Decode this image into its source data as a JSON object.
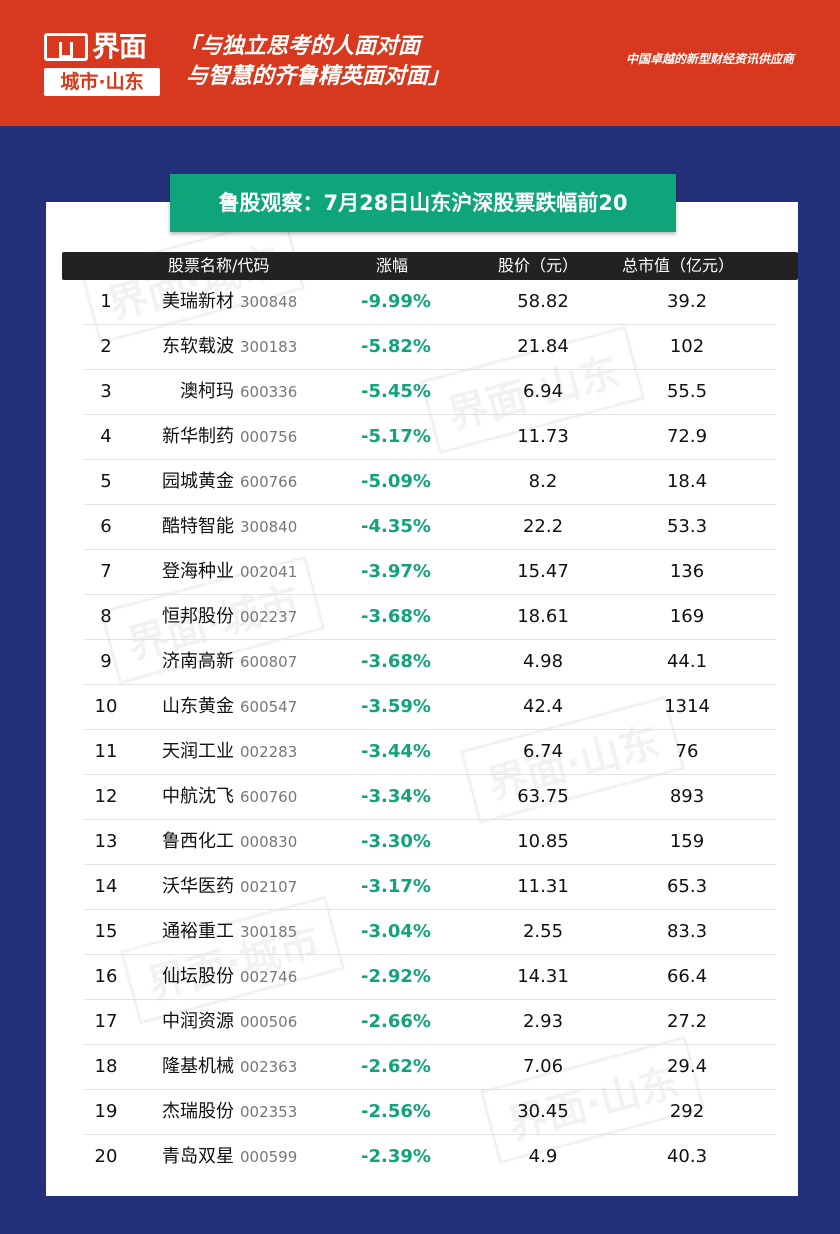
{
  "header": {
    "logo_brand": "界面",
    "logo_sub": "城市·山东",
    "slogan_line1": "「与独立思考的人面对面",
    "slogan_line2": "与智慧的齐鲁精英面对面」",
    "tagline": "中国卓越的新型财经资讯供应商"
  },
  "table": {
    "title": "鲁股观察：7月28日山东沪深股票跌幅前20",
    "columns": {
      "name_code": "股票名称/代码",
      "change": "涨幅",
      "price": "股价（元）",
      "market_cap": "总市值（亿元）"
    },
    "rows": [
      {
        "rank": "1",
        "name": "美瑞新材",
        "code": "300848",
        "change": "-9.99%",
        "price": "58.82",
        "cap": "39.2"
      },
      {
        "rank": "2",
        "name": "东软载波",
        "code": "300183",
        "change": "-5.82%",
        "price": "21.84",
        "cap": "102"
      },
      {
        "rank": "3",
        "name": "澳柯玛",
        "code": "600336",
        "change": "-5.45%",
        "price": "6.94",
        "cap": "55.5"
      },
      {
        "rank": "4",
        "name": "新华制药",
        "code": "000756",
        "change": "-5.17%",
        "price": "11.73",
        "cap": "72.9"
      },
      {
        "rank": "5",
        "name": "园城黄金",
        "code": "600766",
        "change": "-5.09%",
        "price": "8.2",
        "cap": "18.4"
      },
      {
        "rank": "6",
        "name": "酷特智能",
        "code": "300840",
        "change": "-4.35%",
        "price": "22.2",
        "cap": "53.3"
      },
      {
        "rank": "7",
        "name": "登海种业",
        "code": "002041",
        "change": "-3.97%",
        "price": "15.47",
        "cap": "136"
      },
      {
        "rank": "8",
        "name": "恒邦股份",
        "code": "002237",
        "change": "-3.68%",
        "price": "18.61",
        "cap": "169"
      },
      {
        "rank": "9",
        "name": "济南高新",
        "code": "600807",
        "change": "-3.68%",
        "price": "4.98",
        "cap": "44.1"
      },
      {
        "rank": "10",
        "name": "山东黄金",
        "code": "600547",
        "change": "-3.59%",
        "price": "42.4",
        "cap": "1314"
      },
      {
        "rank": "11",
        "name": "天润工业",
        "code": "002283",
        "change": "-3.44%",
        "price": "6.74",
        "cap": "76"
      },
      {
        "rank": "12",
        "name": "中航沈飞",
        "code": "600760",
        "change": "-3.34%",
        "price": "63.75",
        "cap": "893"
      },
      {
        "rank": "13",
        "name": "鲁西化工",
        "code": "000830",
        "change": "-3.30%",
        "price": "10.85",
        "cap": "159"
      },
      {
        "rank": "14",
        "name": "沃华医药",
        "code": "002107",
        "change": "-3.17%",
        "price": "11.31",
        "cap": "65.3"
      },
      {
        "rank": "15",
        "name": "通裕重工",
        "code": "300185",
        "change": "-3.04%",
        "price": "2.55",
        "cap": "83.3"
      },
      {
        "rank": "16",
        "name": "仙坛股份",
        "code": "002746",
        "change": "-2.92%",
        "price": "14.31",
        "cap": "66.4"
      },
      {
        "rank": "17",
        "name": "中润资源",
        "code": "000506",
        "change": "-2.66%",
        "price": "2.93",
        "cap": "27.2"
      },
      {
        "rank": "18",
        "name": "隆基机械",
        "code": "002363",
        "change": "-2.62%",
        "price": "7.06",
        "cap": "29.4"
      },
      {
        "rank": "19",
        "name": "杰瑞股份",
        "code": "002353",
        "change": "-2.56%",
        "price": "30.45",
        "cap": "292"
      },
      {
        "rank": "20",
        "name": "青岛双星",
        "code": "000599",
        "change": "-2.39%",
        "price": "4.9",
        "cap": "40.3"
      }
    ]
  },
  "colors": {
    "header_red": "#d8381d",
    "background_navy": "#23307a",
    "title_green": "#0ea57b",
    "change_green": "#12a37c",
    "table_header_dark": "#222222"
  }
}
